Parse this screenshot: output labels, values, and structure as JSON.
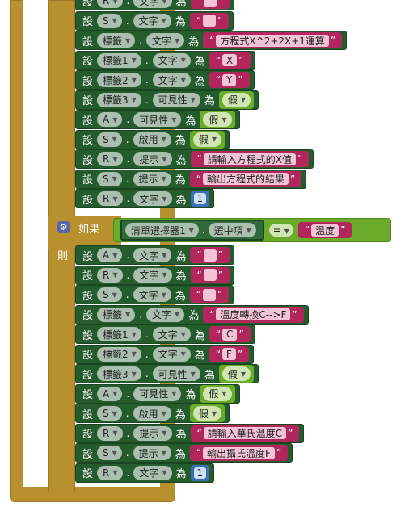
{
  "keywords": {
    "set": "設",
    "to": "為",
    "if": "如果",
    "then": "則",
    "dot": "."
  },
  "condition": {
    "component": "清單選擇器1",
    "property": "選中項",
    "operator": "=",
    "value": "溫度"
  },
  "rows_top": [
    {
      "component": "R",
      "property": "文字",
      "kind": "text",
      "value": ""
    },
    {
      "component": "S",
      "property": "文字",
      "kind": "text",
      "value": ""
    },
    {
      "component": "標籤",
      "property": "文字",
      "kind": "text",
      "value": "方程式X^2+2X+1運算"
    },
    {
      "component": "標籤1",
      "property": "文字",
      "kind": "text",
      "value": "X"
    },
    {
      "component": "標籤2",
      "property": "文字",
      "kind": "text",
      "value": "Y"
    },
    {
      "component": "標籤3",
      "property": "可見性",
      "kind": "bool",
      "value": "假"
    },
    {
      "component": "A",
      "property": "可見性",
      "kind": "bool",
      "value": "假"
    },
    {
      "component": "S",
      "property": "啟用",
      "kind": "bool",
      "value": "假"
    },
    {
      "component": "R",
      "property": "提示",
      "kind": "text",
      "value": "請輸入方程式的X值"
    },
    {
      "component": "S",
      "property": "提示",
      "kind": "text",
      "value": "輸出方程式的結果"
    },
    {
      "component": "R",
      "property": "文字",
      "kind": "num",
      "value": "1"
    }
  ],
  "rows_bottom": [
    {
      "component": "A",
      "property": "文字",
      "kind": "text",
      "value": ""
    },
    {
      "component": "R",
      "property": "文字",
      "kind": "text",
      "value": ""
    },
    {
      "component": "S",
      "property": "文字",
      "kind": "text",
      "value": ""
    },
    {
      "component": "標籤",
      "property": "文字",
      "kind": "text",
      "value": "溫度轉換C-->F"
    },
    {
      "component": "標籤1",
      "property": "文字",
      "kind": "text",
      "value": "C"
    },
    {
      "component": "標籤2",
      "property": "文字",
      "kind": "text",
      "value": "F"
    },
    {
      "component": "標籤3",
      "property": "可見性",
      "kind": "bool",
      "value": "假"
    },
    {
      "component": "A",
      "property": "可見性",
      "kind": "bool",
      "value": "假"
    },
    {
      "component": "S",
      "property": "啟用",
      "kind": "bool",
      "value": "假"
    },
    {
      "component": "R",
      "property": "提示",
      "kind": "text",
      "value": "請輸入華氏溫度C"
    },
    {
      "component": "S",
      "property": "提示",
      "kind": "text",
      "value": "輸出攝氏溫度F"
    },
    {
      "component": "R",
      "property": "文字",
      "kind": "num",
      "value": "1"
    }
  ],
  "colors": {
    "control_block": "#b8902e",
    "setter_block": "#245c2e",
    "text_block": "#b1275c",
    "logic_block": "#6aab2a",
    "math_block": "#3d6fb4"
  },
  "icons": {
    "dropdown": "▼",
    "quote_open": "“",
    "quote_close": "”",
    "gear": "⚙"
  }
}
